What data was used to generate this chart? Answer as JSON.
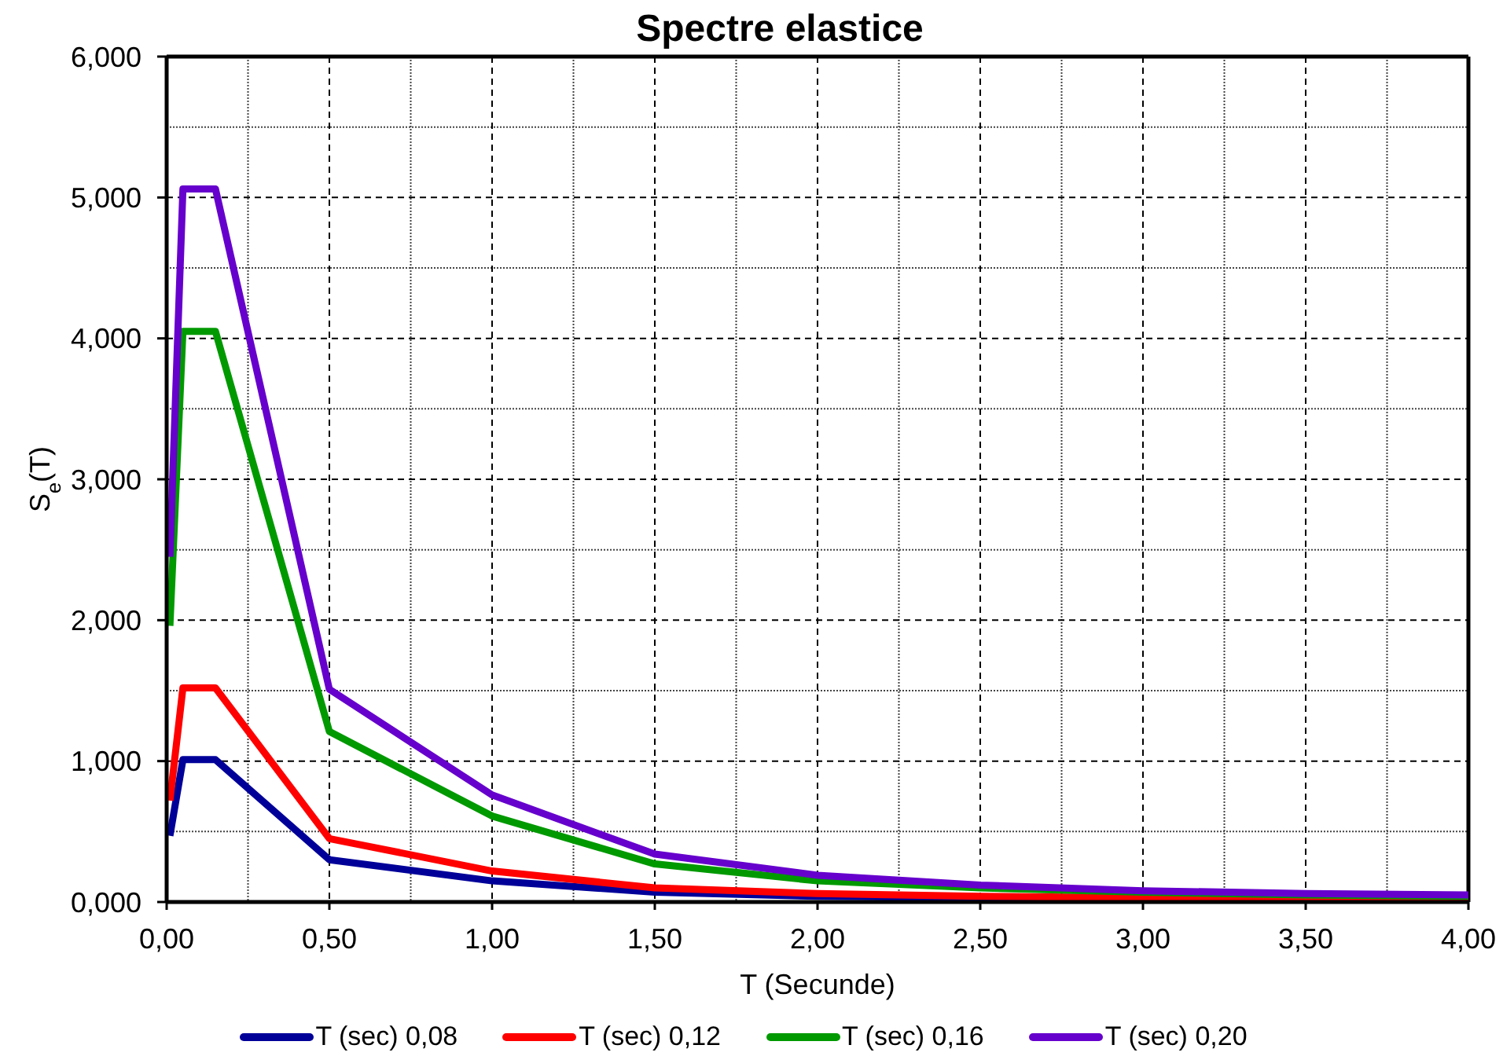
{
  "chart_data": {
    "type": "line",
    "title": "Spectre elastice",
    "xlabel": "T (Secunde)",
    "ylabel": "S$_{e}$(T)",
    "x": [
      0.01,
      0.05,
      0.15,
      0.5,
      1,
      1.5,
      2,
      2.5,
      3,
      3.5,
      4
    ],
    "series": [
      {
        "name": "T (sec) 0,08",
        "color": "#000099",
        "values": [
          0.47,
          1.01,
          1.01,
          0.3,
          0.15,
          0.07,
          0.04,
          0.03,
          0.02,
          0.02,
          0.01
        ]
      },
      {
        "name": "T (sec) 0,12",
        "color": "#ff0000",
        "values": [
          0.72,
          1.52,
          1.52,
          0.45,
          0.22,
          0.1,
          0.06,
          0.04,
          0.03,
          0.02,
          0.02
        ]
      },
      {
        "name": "T (sec) 0,16",
        "color": "#009900",
        "values": [
          1.96,
          4.05,
          4.05,
          1.21,
          0.61,
          0.27,
          0.15,
          0.1,
          0.07,
          0.05,
          0.04
        ]
      },
      {
        "name": "T (sec) 0,20",
        "color": "#6600cc",
        "values": [
          2.45,
          5.06,
          5.06,
          1.51,
          0.76,
          0.34,
          0.19,
          0.12,
          0.08,
          0.06,
          0.05
        ]
      }
    ],
    "xlim": [
      0,
      4
    ],
    "xticks": [
      {
        "value": 0,
        "label": "0,00"
      },
      {
        "value": 0.25,
        "label": null
      },
      {
        "value": 0.5,
        "label": "0,50"
      },
      {
        "value": 0.75,
        "label": null
      },
      {
        "value": 1,
        "label": "1,00"
      },
      {
        "value": 1.25,
        "label": null
      },
      {
        "value": 1.5,
        "label": "1,50"
      },
      {
        "value": 1.75,
        "label": null
      },
      {
        "value": 2,
        "label": "2,00"
      },
      {
        "value": 2.25,
        "label": null
      },
      {
        "value": 2.5,
        "label": "2,50"
      },
      {
        "value": 2.75,
        "label": null
      },
      {
        "value": 3,
        "label": "3,00"
      },
      {
        "value": 3.25,
        "label": null
      },
      {
        "value": 3.5,
        "label": "3,50"
      },
      {
        "value": 3.75,
        "label": null
      },
      {
        "value": 4,
        "label": "4,00"
      }
    ],
    "ylim": [
      0,
      6
    ],
    "yticks": [
      {
        "value": 0,
        "label": "0,000"
      },
      {
        "value": 0.5,
        "label": null
      },
      {
        "value": 1,
        "label": "1,000"
      },
      {
        "value": 1.5,
        "label": null
      },
      {
        "value": 2,
        "label": "2,000"
      },
      {
        "value": 2.5,
        "label": null
      },
      {
        "value": 3,
        "label": "3,000"
      },
      {
        "value": 3.5,
        "label": null
      },
      {
        "value": 4,
        "label": "4,000"
      },
      {
        "value": 4.5,
        "label": null
      },
      {
        "value": 5,
        "label": "5,000"
      },
      {
        "value": 5.5,
        "label": null
      },
      {
        "value": 6,
        "label": "6,000"
      }
    ],
    "grid": true,
    "legend": "bottom",
    "marker": "none",
    "line_style": "solid"
  }
}
